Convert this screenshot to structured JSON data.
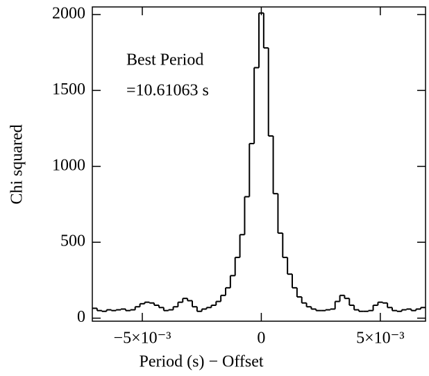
{
  "chart_data": {
    "type": "histogram",
    "xlabel": "Period (s) − Offset",
    "ylabel": "Chi squared",
    "annotations": [
      "Best Period",
      "=10.61063 s"
    ],
    "color": "#000000",
    "bins": [
      -0.0071,
      -0.0069,
      -0.0067,
      -0.0065,
      -0.0063,
      -0.0061,
      -0.0059,
      -0.0057,
      -0.0055,
      -0.0053,
      -0.0051,
      -0.0049,
      -0.0047,
      -0.0045,
      -0.0043,
      -0.0041,
      -0.0039,
      -0.0037,
      -0.0035,
      -0.0033,
      -0.0031,
      -0.0029,
      -0.0027,
      -0.0025,
      -0.0023,
      -0.0021,
      -0.0019,
      -0.0017,
      -0.0015,
      -0.0013,
      -0.0011,
      -0.0009,
      -0.0007,
      -0.0005,
      -0.0003,
      -0.0001,
      0.0001,
      0.0003,
      0.0005,
      0.0007,
      0.0009,
      0.0011,
      0.0013,
      0.0015,
      0.0017,
      0.0019,
      0.0021,
      0.0023,
      0.0025,
      0.0027,
      0.0029,
      0.0031,
      0.0033,
      0.0035,
      0.0037,
      0.0039,
      0.0041,
      0.0043,
      0.0045,
      0.0047,
      0.0049,
      0.0051,
      0.0053,
      0.0055,
      0.0057,
      0.0059,
      0.0061,
      0.0063,
      0.0065,
      0.0067,
      0.0069
    ],
    "values": [
      65,
      50,
      45,
      55,
      50,
      55,
      60,
      50,
      55,
      75,
      95,
      105,
      100,
      85,
      70,
      50,
      55,
      75,
      105,
      130,
      115,
      75,
      45,
      60,
      70,
      85,
      110,
      150,
      200,
      280,
      400,
      550,
      800,
      1150,
      1650,
      2010,
      1780,
      1200,
      820,
      560,
      400,
      290,
      200,
      140,
      100,
      75,
      60,
      50,
      50,
      55,
      60,
      110,
      150,
      130,
      85,
      55,
      45,
      45,
      50,
      85,
      105,
      100,
      70,
      50,
      45,
      55,
      60,
      50,
      60,
      70
    ],
    "xlim": [
      -0.0071,
      0.0069
    ],
    "ylim": [
      -20,
      2050
    ],
    "xticks": [
      {
        "value": -0.005,
        "label": "−5×10⁻³"
      },
      0,
      {
        "value": 0.005,
        "label": "5×10⁻³"
      }
    ],
    "yticks": [
      0,
      500,
      1000,
      1500,
      2000
    ]
  }
}
